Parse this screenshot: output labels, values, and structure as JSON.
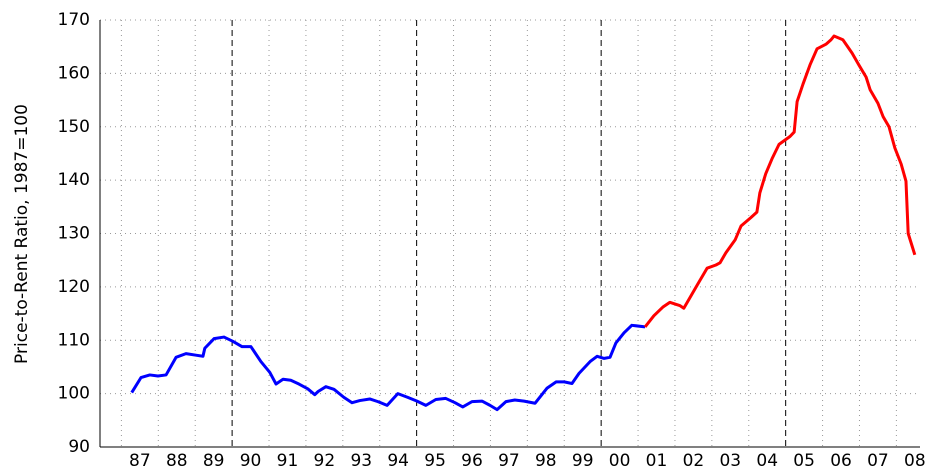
{
  "chart_data": {
    "type": "line",
    "ylabel": "Price-to-Rent Ratio, 1987=100",
    "xlim": [
      1986.42,
      2008.64
    ],
    "ylim": [
      90,
      170
    ],
    "yticks": [
      90,
      100,
      110,
      120,
      130,
      140,
      150,
      160,
      170
    ],
    "xticks": [
      {
        "value": 1987.5,
        "label": "87"
      },
      {
        "value": 1988.5,
        "label": "88"
      },
      {
        "value": 1989.5,
        "label": "89"
      },
      {
        "value": 1990.5,
        "label": "90"
      },
      {
        "value": 1991.5,
        "label": "91"
      },
      {
        "value": 1992.5,
        "label": "92"
      },
      {
        "value": 1993.5,
        "label": "93"
      },
      {
        "value": 1994.5,
        "label": "94"
      },
      {
        "value": 1995.5,
        "label": "95"
      },
      {
        "value": 1996.5,
        "label": "96"
      },
      {
        "value": 1997.5,
        "label": "97"
      },
      {
        "value": 1998.5,
        "label": "98"
      },
      {
        "value": 1999.5,
        "label": "99"
      },
      {
        "value": 2000.5,
        "label": "00"
      },
      {
        "value": 2001.5,
        "label": "01"
      },
      {
        "value": 2002.5,
        "label": "02"
      },
      {
        "value": 2003.5,
        "label": "03"
      },
      {
        "value": 2004.5,
        "label": "04"
      },
      {
        "value": 2005.5,
        "label": "05"
      },
      {
        "value": 2006.5,
        "label": "06"
      },
      {
        "value": 2007.5,
        "label": "07"
      },
      {
        "value": 2008.5,
        "label": "08"
      }
    ],
    "xgrid": [
      1987,
      1988,
      1989,
      1991,
      1992,
      1993,
      1994,
      1996,
      1997,
      1998,
      1999,
      2001,
      2002,
      2003,
      2004,
      2006,
      2007,
      2008
    ],
    "vlines": [
      1990,
      1995,
      2000,
      2005
    ],
    "grid": true,
    "series": [
      {
        "color": "#0000ff",
        "x": [
          1987.28,
          1987.53,
          1987.77,
          1987.99,
          1988.21,
          1988.48,
          1988.75,
          1989.02,
          1989.21,
          1989.26,
          1989.51,
          1989.78,
          1990.02,
          1990.27,
          1990.51,
          1990.78,
          1991.02,
          1991.19,
          1991.38,
          1991.59,
          1991.81,
          1992.05,
          1992.24,
          1992.33,
          1992.54,
          1992.76,
          1993.03,
          1993.25,
          1993.46,
          1993.73,
          1993.95,
          1994.2,
          1994.49,
          1994.76,
          1995.01,
          1995.25,
          1995.52,
          1995.79,
          1996.04,
          1996.25,
          1996.5,
          1996.77,
          1996.99,
          1997.18,
          1997.42,
          1997.66,
          1997.91,
          1998.21,
          1998.53,
          1998.78,
          1999.0,
          1999.21,
          1999.4,
          1999.7,
          1999.89,
          2000.08,
          2000.24,
          2000.4,
          2000.62,
          2000.83,
          2001.19
        ],
        "values": [
          100.2,
          103,
          103.5,
          103.3,
          103.5,
          106.8,
          107.5,
          107.2,
          107.0,
          108.5,
          110.3,
          110.6,
          109.8,
          108.8,
          108.8,
          106.0,
          104.0,
          101.8,
          102.7,
          102.5,
          101.8,
          100.9,
          99.8,
          100.4,
          101.3,
          100.8,
          99.3,
          98.3,
          98.7,
          99.0,
          98.5,
          97.8,
          100.0,
          99.3,
          98.6,
          97.8,
          98.9,
          99.1,
          98.3,
          97.5,
          98.5,
          98.6,
          97.8,
          97.0,
          98.5,
          98.8,
          98.6,
          98.2,
          101.0,
          102.2,
          102.2,
          101.9,
          103.8,
          106.0,
          107.0,
          106.6,
          106.8,
          109.5,
          111.4,
          112.8,
          112.5
        ]
      },
      {
        "color": "#ff0000",
        "x": [
          2001.19,
          2001.43,
          2001.67,
          2001.86,
          2002.13,
          2002.24,
          2002.6,
          2002.87,
          2003.11,
          2003.22,
          2003.38,
          2003.63,
          2003.79,
          2004.06,
          2004.22,
          2004.3,
          2004.46,
          2004.63,
          2004.82,
          2005.12,
          2005.23,
          2005.31,
          2005.47,
          2005.66,
          2005.85,
          2006.1,
          2006.23,
          2006.31,
          2006.55,
          2006.8,
          2006.99,
          2007.18,
          2007.29,
          2007.5,
          2007.64,
          2007.8,
          2007.96,
          2008.13,
          2008.26,
          2008.32,
          2008.5
        ],
        "values": [
          112.5,
          114.6,
          116.2,
          117.1,
          116.5,
          116.0,
          120.3,
          123.5,
          124.1,
          124.5,
          126.4,
          128.8,
          131.4,
          133.0,
          134.0,
          137.6,
          141.2,
          144.0,
          146.7,
          148.2,
          149.0,
          154.7,
          158.0,
          161.6,
          164.6,
          165.5,
          166.3,
          167.0,
          166.3,
          163.8,
          161.5,
          159.3,
          156.9,
          154.4,
          151.9,
          150.0,
          146.0,
          143.0,
          139.8,
          130.0,
          126.0
        ]
      }
    ]
  }
}
